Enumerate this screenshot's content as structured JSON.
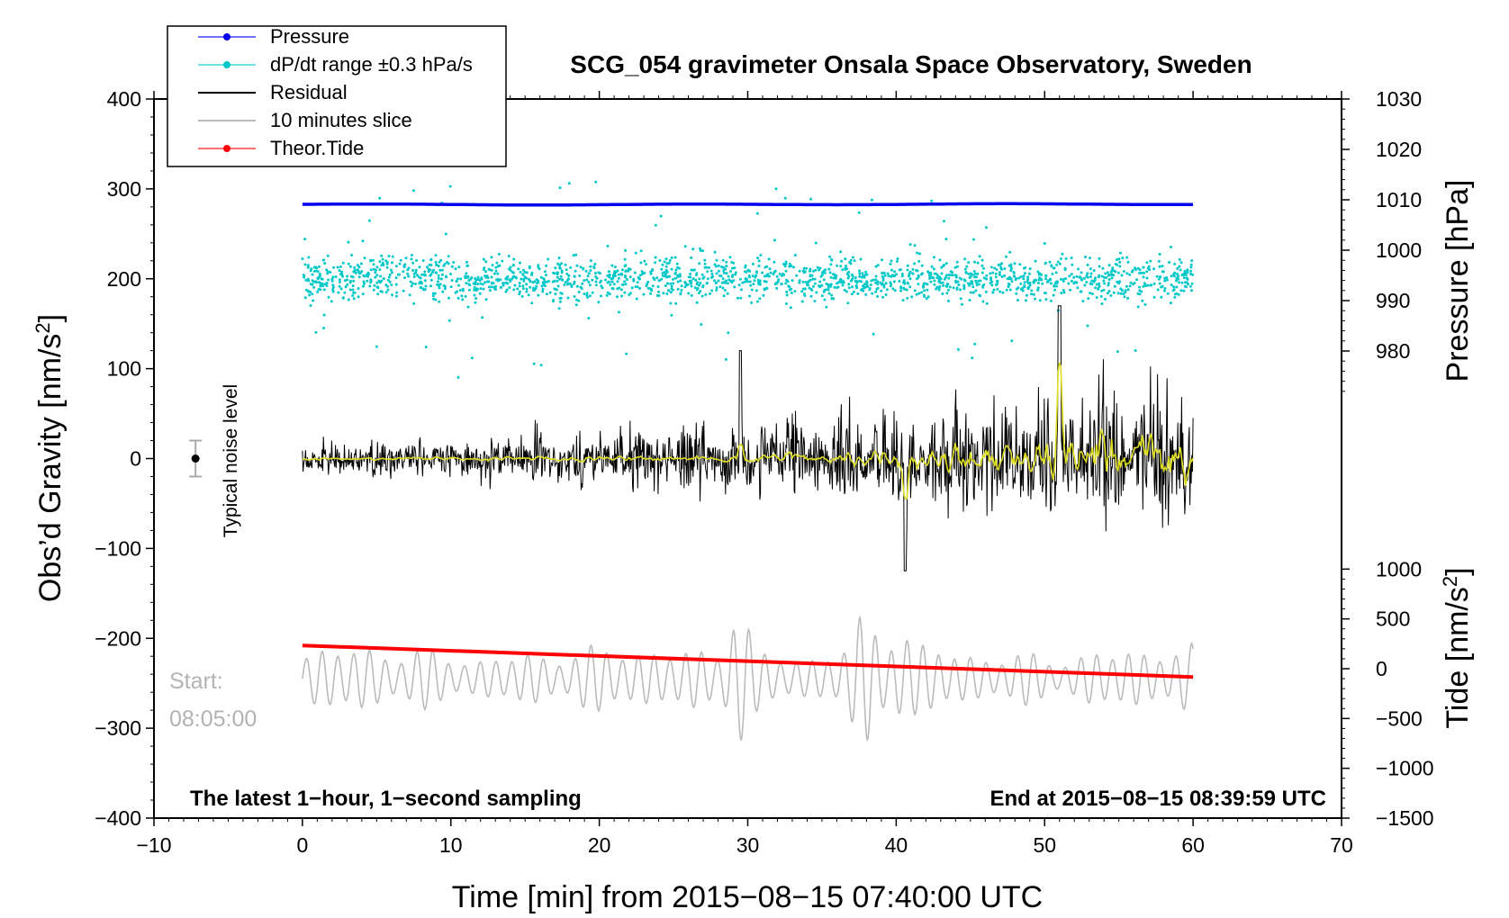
{
  "chart_data": {
    "type": "line",
    "title": "SCG_054 gravimeter Onsala Space Observatory, Sweden",
    "xlabel": "Time [min] from 2015−08−15 07:40:00 UTC",
    "ylabel_left": "Obs’d Gravity [nm/s",
    "ylabel_left_sup": "2",
    "ylabel_left_end": "]",
    "ylabel_right_pressure": "Pressure [hPa]",
    "ylabel_right_tide": "Tide [nm/s",
    "ylabel_right_tide_sup": "2",
    "ylabel_right_tide_end": "]",
    "xlim": [
      -10,
      70
    ],
    "ylim_left": [
      -400,
      400
    ],
    "ylim_pressure": [
      970,
      1030
    ],
    "ylim_tide": [
      -1500,
      1500
    ],
    "x_ticks": [
      "−10",
      "0",
      "10",
      "20",
      "30",
      "40",
      "50",
      "60",
      "70"
    ],
    "y_left_ticks": [
      "400",
      "300",
      "200",
      "100",
      "0",
      "−100",
      "−200",
      "−300",
      "−400"
    ],
    "pressure_ticks": [
      "1030",
      "1020",
      "1010",
      "1000",
      "990",
      "980"
    ],
    "tide_ticks": [
      "1000",
      "500",
      "0",
      "−500",
      "−1000",
      "−1500"
    ],
    "legend": [
      {
        "label": "Pressure",
        "color": "#0000ee"
      },
      {
        "label": "dP/dt range ±0.3 hPa/s",
        "color": "#00c8c8"
      },
      {
        "label": "Residual",
        "color": "#000000"
      },
      {
        "label": "10 minutes slice",
        "color": "#bbbbbb"
      },
      {
        "label": "Theor.Tide",
        "color": "#ff0000"
      }
    ],
    "series": [
      {
        "name": "Pressure",
        "x_range": [
          0,
          60
        ],
        "value_hPa": 1009.1,
        "axis": "pressure"
      },
      {
        "name": "dP/dt range ±0.3 hPa/s",
        "x_range": [
          0,
          60
        ],
        "center_nm_s2": 200,
        "spread_nm_s2": 110
      },
      {
        "name": "Residual",
        "x_range": [
          0,
          60
        ],
        "start_amplitude": 25,
        "end_amplitude": 110,
        "min_value": -125,
        "max_value": 170
      },
      {
        "name": "10 minutes slice",
        "x_range": [
          0,
          60
        ],
        "center_nm_s2": -245,
        "amplitude": 50,
        "peak_x": 29.3
      },
      {
        "name": "Theor.Tide",
        "x_range": [
          0,
          60
        ],
        "start_nm_s2": -208,
        "end_nm_s2": -243
      }
    ],
    "noise_marker": {
      "x": -7.2,
      "value": 0,
      "error": 20,
      "label": "Typical noise level"
    },
    "slice_start_label": "Start:",
    "slice_start_time": "08:05:00",
    "bottom_left_text": "The latest 1−hour, 1−second sampling",
    "bottom_right_text": "End at 2015−08−15 08:39:59 UTC"
  }
}
